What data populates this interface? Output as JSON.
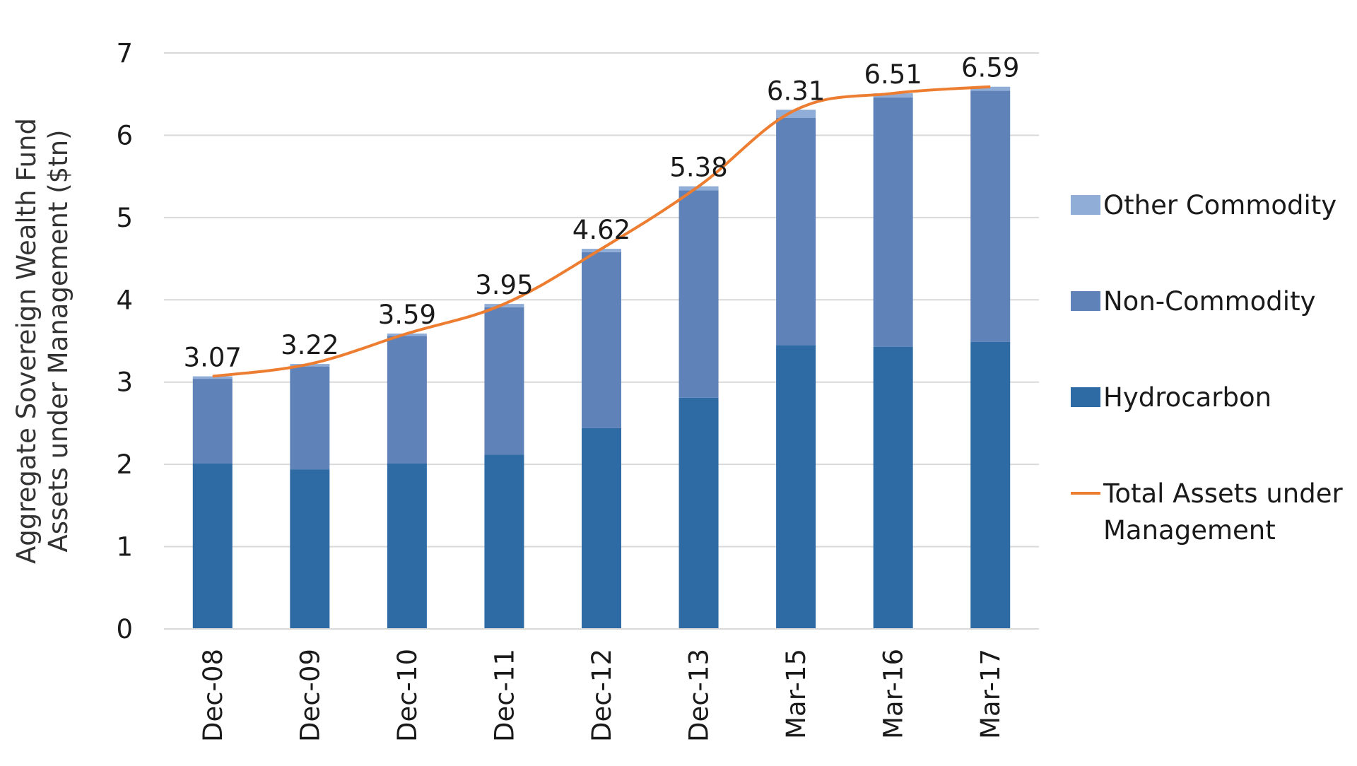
{
  "chart_data": {
    "type": "bar",
    "stacked": true,
    "categories": [
      "Dec-08",
      "Dec-09",
      "Dec-10",
      "Dec-11",
      "Dec-12",
      "Dec-13",
      "Mar-15",
      "Mar-16",
      "Mar-17"
    ],
    "series": [
      {
        "name": "Hydrocarbon",
        "type": "bar",
        "color": "#2e6aa3",
        "values": [
          2.01,
          1.94,
          2.01,
          2.12,
          2.44,
          2.81,
          3.45,
          3.43,
          3.49
        ]
      },
      {
        "name": "Non-Commodity",
        "type": "bar",
        "color": "#5f83b8",
        "values": [
          1.03,
          1.25,
          1.55,
          1.79,
          2.14,
          2.52,
          2.76,
          3.03,
          3.05
        ]
      },
      {
        "name": "Other Commodity",
        "type": "bar",
        "color": "#8fadd7",
        "values": [
          0.03,
          0.03,
          0.03,
          0.04,
          0.04,
          0.05,
          0.1,
          0.05,
          0.05
        ]
      },
      {
        "name": "Total Assets under Management",
        "type": "line",
        "color": "#ec7d31",
        "values": [
          3.07,
          3.22,
          3.59,
          3.95,
          4.62,
          5.38,
          6.31,
          6.51,
          6.59
        ]
      }
    ],
    "data_labels": [
      "3.07",
      "3.22",
      "3.59",
      "3.95",
      "4.62",
      "5.38",
      "6.31",
      "6.51",
      "6.59"
    ],
    "title": "",
    "xlabel": "",
    "ylabel": "Aggregate Sovereign Wealth Fund Assets under Management ($tn)",
    "ylabel_lines": [
      "Aggregate Sovereign Wealth Fund",
      "Assets under Management ($tn)"
    ],
    "ylim": [
      0,
      7
    ],
    "yticks": [
      "0",
      "1",
      "2",
      "3",
      "4",
      "5",
      "6",
      "7"
    ],
    "grid": "horizontal",
    "gridline_color": "#d9d9d9",
    "legend_position": "right",
    "legend": [
      {
        "label_lines": [
          "Other Commodity"
        ],
        "color": "#8fadd7",
        "kind": "box"
      },
      {
        "label_lines": [
          "Non-Commodity"
        ],
        "color": "#5f83b8",
        "kind": "box"
      },
      {
        "label_lines": [
          "Hydrocarbon"
        ],
        "color": "#2e6aa3",
        "kind": "box"
      },
      {
        "label_lines": [
          "Total Assets under",
          "Management"
        ],
        "color": "#ec7d31",
        "kind": "line"
      }
    ]
  }
}
